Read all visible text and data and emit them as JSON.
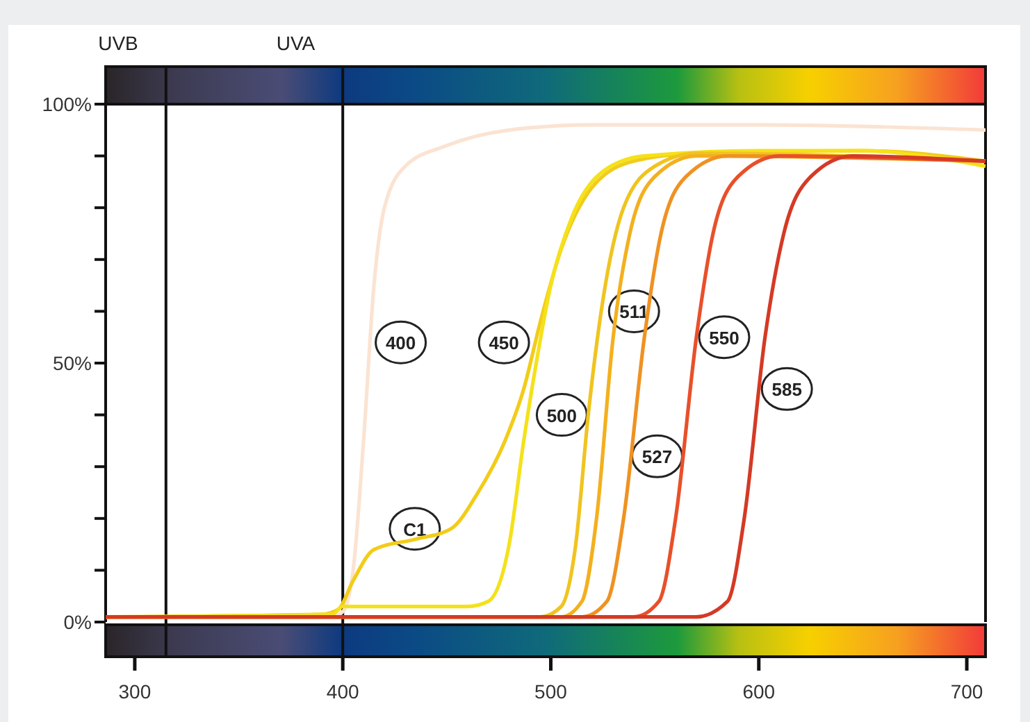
{
  "chart_data": {
    "type": "line",
    "xlim": [
      286,
      709
    ],
    "xticks": [
      300,
      400,
      500,
      600,
      700
    ],
    "ylim": [
      0,
      100
    ],
    "yticks": [
      {
        "value": 0,
        "label": "0%"
      },
      {
        "value": 10,
        "label": null
      },
      {
        "value": 20,
        "label": null
      },
      {
        "value": 30,
        "label": null
      },
      {
        "value": 40,
        "label": null
      },
      {
        "value": 50,
        "label": "50%"
      },
      {
        "value": 60,
        "label": null
      },
      {
        "value": 70,
        "label": null
      },
      {
        "value": 80,
        "label": null
      },
      {
        "value": 90,
        "label": null
      },
      {
        "value": 100,
        "label": "100%"
      }
    ],
    "grid": false,
    "legend": false,
    "marker": "none",
    "line_style": "solid",
    "ref_lines": [
      {
        "axis": "x",
        "value": 315,
        "label": "UVB",
        "color": "#111111"
      },
      {
        "axis": "x",
        "value": 400,
        "label": "UVA",
        "color": "#111111"
      }
    ],
    "series": [
      {
        "name": "400",
        "color": "#fbe3d2",
        "x": [
          286,
          395,
          400,
          405,
          410,
          415,
          420,
          430,
          450,
          480,
          520,
          600,
          709
        ],
        "values": [
          1,
          1,
          2,
          10,
          35,
          65,
          80,
          88,
          92,
          95,
          96,
          96,
          95
        ]
      },
      {
        "name": "C1",
        "color": "#f2cc1a",
        "x": [
          286,
          390,
          398,
          405,
          415,
          435,
          452,
          465,
          478,
          487,
          495,
          505,
          520,
          540,
          570,
          650,
          709
        ],
        "values": [
          1,
          1.5,
          2.5,
          8,
          14,
          16,
          18,
          25,
          35,
          45,
          58,
          72,
          84,
          89,
          90.5,
          91,
          89
        ]
      },
      {
        "name": "450",
        "color": "#f5e11a",
        "x": [
          286,
          395,
          400,
          460,
          470,
          480,
          487,
          493,
          500,
          510,
          525,
          545,
          600,
          650,
          680,
          709
        ],
        "values": [
          1,
          1.5,
          3,
          3,
          4,
          15,
          35,
          50,
          65,
          78,
          87,
          90,
          91,
          91,
          90,
          88
        ]
      },
      {
        "name": "500",
        "color": "#f0c420",
        "x": [
          286,
          495,
          505,
          512,
          518,
          525,
          535,
          550,
          570,
          709
        ],
        "values": [
          1,
          1,
          3,
          15,
          40,
          62,
          80,
          88,
          90.5,
          89
        ]
      },
      {
        "name": "511",
        "color": "#f3b01e",
        "x": [
          286,
          505,
          515,
          522,
          530,
          538,
          550,
          570,
          709
        ],
        "values": [
          1,
          1,
          4,
          20,
          55,
          75,
          86,
          90,
          89
        ]
      },
      {
        "name": "527",
        "color": "#ef9222",
        "x": [
          286,
          515,
          527,
          535,
          545,
          553,
          565,
          585,
          709
        ],
        "values": [
          1,
          1,
          4,
          20,
          55,
          75,
          86,
          90,
          89
        ]
      },
      {
        "name": "550",
        "color": "#e8502a",
        "x": [
          286,
          540,
          552,
          560,
          570,
          578,
          590,
          610,
          709
        ],
        "values": [
          1,
          1,
          4,
          20,
          55,
          75,
          86,
          90,
          89
        ]
      },
      {
        "name": "585",
        "color": "#d43a25",
        "x": [
          286,
          570,
          585,
          593,
          603,
          612,
          625,
          645,
          709
        ],
        "values": [
          1,
          1,
          4,
          20,
          55,
          75,
          86,
          90,
          89
        ]
      }
    ]
  }
}
